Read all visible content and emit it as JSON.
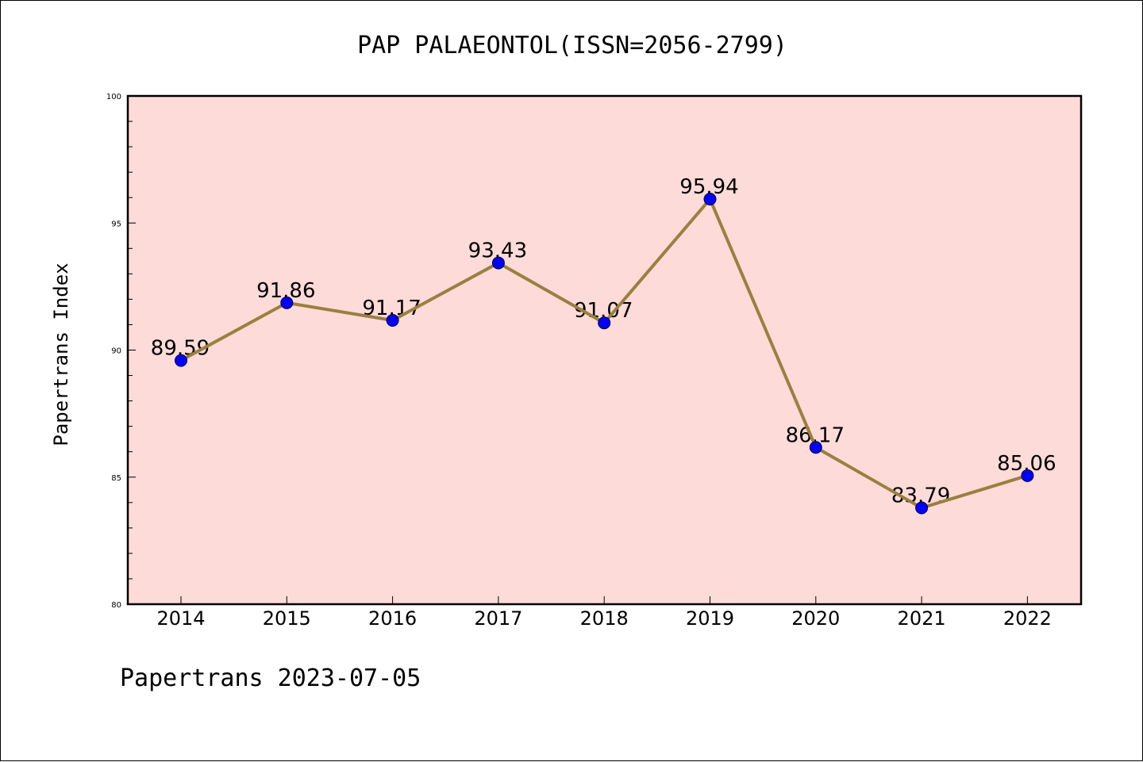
{
  "chart_data": {
    "type": "line",
    "title": "PAP PALAEONTOL(ISSN=2056-2799)",
    "ylabel": "Papertrans Index",
    "footer": "Papertrans 2023-07-05",
    "categories": [
      "2014",
      "2015",
      "2016",
      "2017",
      "2018",
      "2019",
      "2020",
      "2021",
      "2022"
    ],
    "series": [
      {
        "values": [
          89.59,
          91.86,
          91.17,
          93.43,
          91.07,
          95.94,
          86.17,
          83.79,
          85.06
        ],
        "labels": [
          "89.59",
          "91.86",
          "91.17",
          "93.43",
          "91.07",
          "95.94",
          "86.17",
          "83.79",
          "85.06"
        ]
      }
    ],
    "ylim": [
      80,
      100
    ],
    "yticks": [
      "80",
      "85",
      "90",
      "95",
      "100"
    ],
    "grid": false,
    "legend": "none",
    "colors": {
      "plot_background": "#fddbd8",
      "line": "#9a8040",
      "marker": "#0000ff",
      "marker_edge": "#000033"
    }
  }
}
